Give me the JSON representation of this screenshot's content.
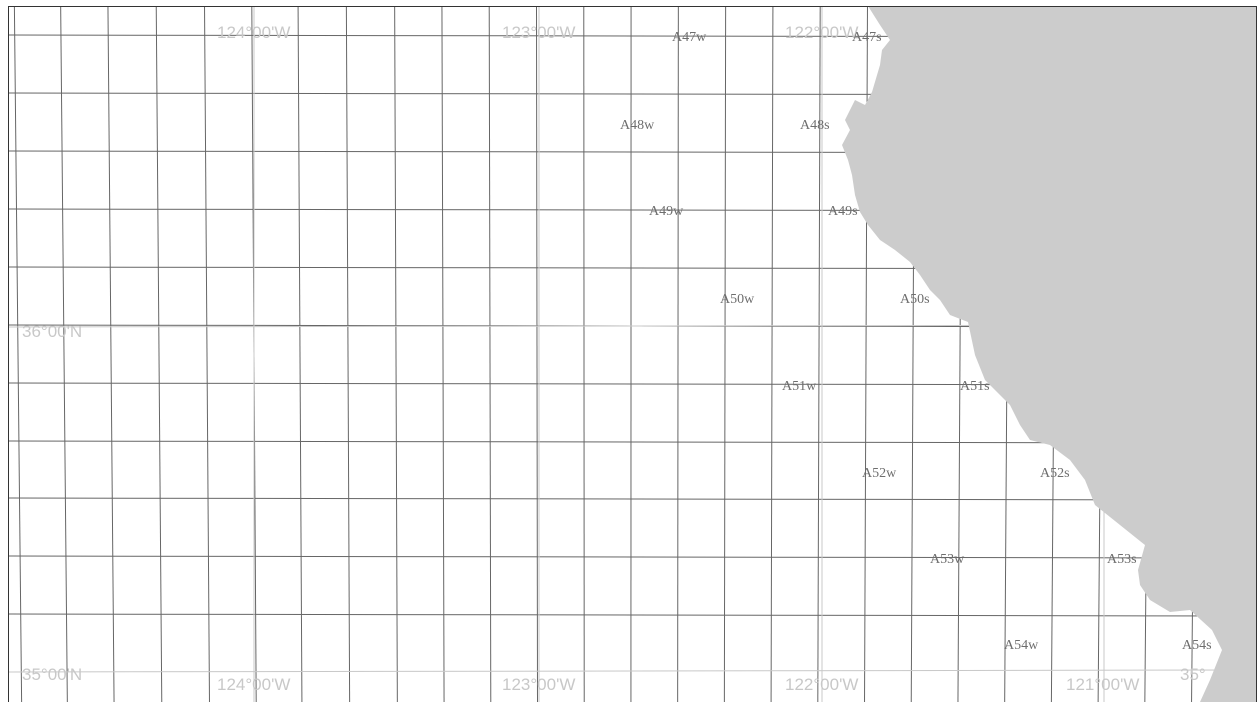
{
  "map": {
    "colors": {
      "land": "#cccccc",
      "water": "#ffffff",
      "grid_line": "#666666",
      "graticule": "#c8c8c8",
      "block_label": "#6e6e6e",
      "frame": "#333333"
    },
    "graticule_labels": {
      "lon_top": [
        "124°00'W",
        "123°00'W",
        "122°00'W"
      ],
      "lon_bottom": [
        "124°00'W",
        "123°00'W",
        "122°00'W",
        "121°00'W"
      ],
      "lat_left": [
        "36°00'N",
        "35°00'N"
      ],
      "lat_right_partial": "35°"
    },
    "blocks": [
      {
        "id": "A47w",
        "label": "A47w"
      },
      {
        "id": "A47s",
        "label": "A47s"
      },
      {
        "id": "A48w",
        "label": "A48w"
      },
      {
        "id": "A48s",
        "label": "A48s"
      },
      {
        "id": "A49w",
        "label": "A49w"
      },
      {
        "id": "A49s",
        "label": "A49s"
      },
      {
        "id": "A50w",
        "label": "A50w"
      },
      {
        "id": "A50s",
        "label": "A50s"
      },
      {
        "id": "A51w",
        "label": "A51w"
      },
      {
        "id": "A51s",
        "label": "A51s"
      },
      {
        "id": "A52w",
        "label": "A52w"
      },
      {
        "id": "A52s",
        "label": "A52s"
      },
      {
        "id": "A53w",
        "label": "A53w"
      },
      {
        "id": "A53s",
        "label": "A53s"
      },
      {
        "id": "A54w",
        "label": "A54w"
      },
      {
        "id": "A54s",
        "label": "A54s"
      }
    ]
  }
}
